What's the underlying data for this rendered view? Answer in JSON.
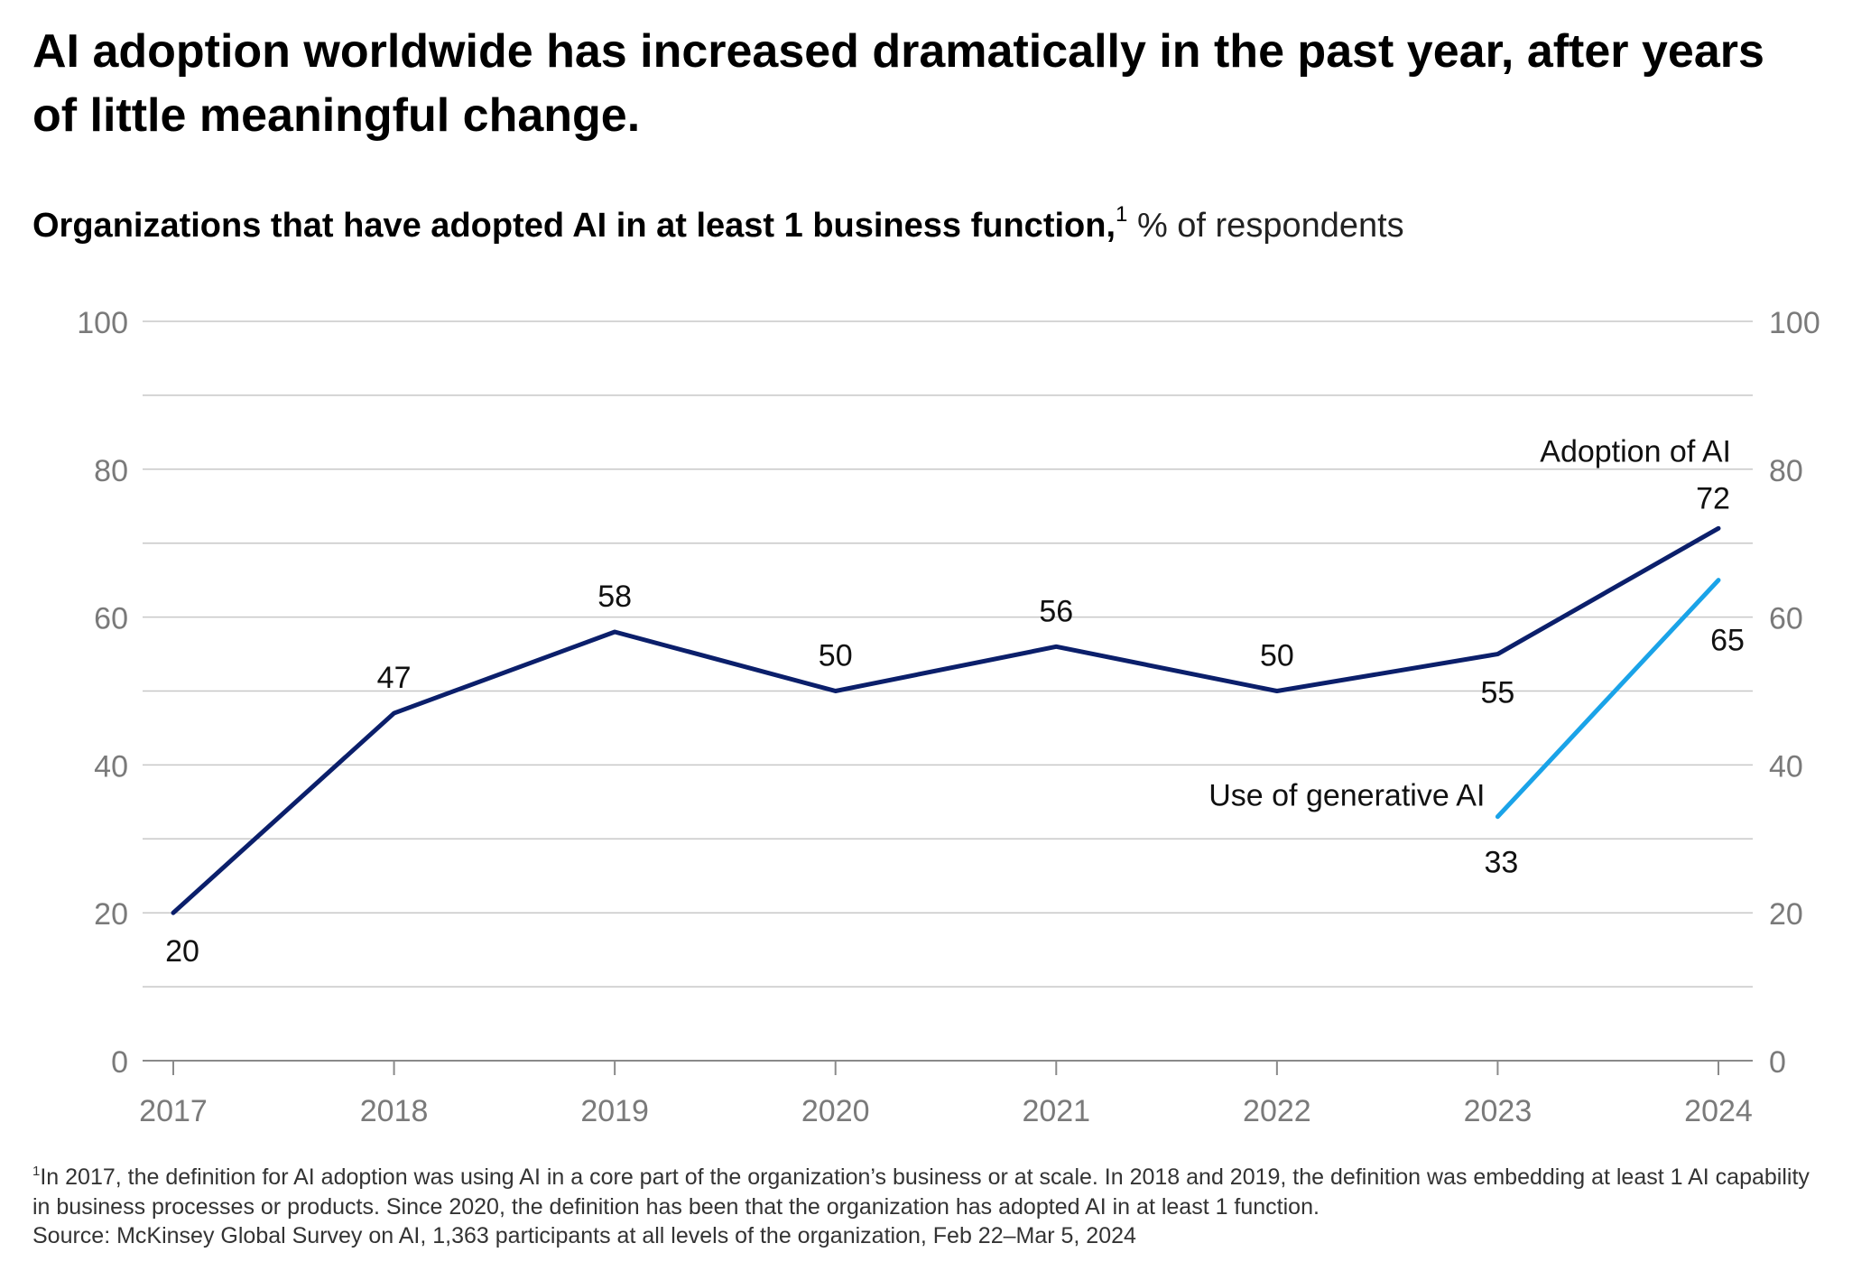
{
  "title": "AI adoption worldwide has increased dramatically in the past year, after years of little meaningful change.",
  "subtitle": {
    "bold": "Organizations that have adopted AI in at least 1 business function,",
    "footnote_mark": "1",
    "unit": "% of respondents"
  },
  "colors": {
    "adoption": "#0b1f6b",
    "genai": "#1aa3e8",
    "grid": "#c8c8c8",
    "axis_text": "#7a7a7a"
  },
  "chart_data": {
    "type": "line",
    "x": [
      "2017",
      "2018",
      "2019",
      "2020",
      "2021",
      "2022",
      "2023",
      "2024"
    ],
    "ylim": [
      0,
      100
    ],
    "yticks": [
      0,
      20,
      40,
      60,
      80,
      100
    ],
    "series": [
      {
        "name": "Adoption of AI",
        "x": [
          "2017",
          "2018",
          "2019",
          "2020",
          "2021",
          "2022",
          "2023",
          "2024"
        ],
        "values": [
          20,
          47,
          58,
          50,
          56,
          50,
          55,
          72
        ],
        "color": "#0b1f6b"
      },
      {
        "name": "Use of generative AI",
        "x": [
          "2023",
          "2024"
        ],
        "values": [
          33,
          65
        ],
        "color": "#1aa3e8"
      }
    ],
    "grid": true,
    "dual_y_axis": true
  },
  "footnotes": {
    "mark": "1",
    "note": "In 2017, the definition for AI adoption was using AI in a core part of the organization’s business or at scale. In 2018 and 2019, the definition was embedding at least 1 AI capability in business processes or products. Since 2020, the definition has been that the organization has adopted AI in at least 1 function.",
    "source": "Source: McKinsey Global Survey on AI, 1,363 participants at all levels of the organization, Feb 22–Mar 5, 2024"
  }
}
